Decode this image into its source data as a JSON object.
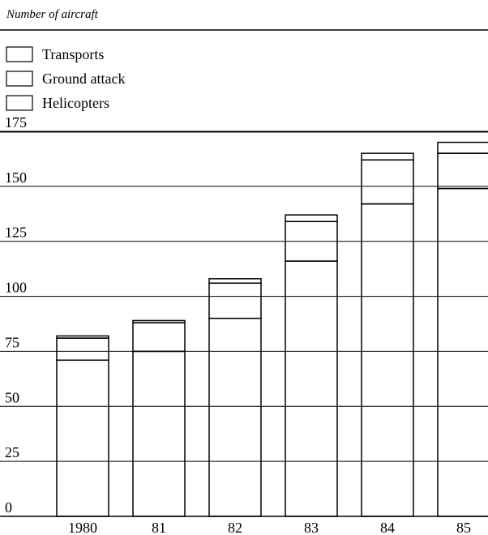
{
  "chart_data": {
    "type": "bar",
    "stacked": true,
    "title": "Number of aircraft",
    "categories": [
      "1980",
      "81",
      "82",
      "83",
      "84",
      "85"
    ],
    "series": [
      {
        "name": "Helicopters",
        "values": [
          71,
          75,
          90,
          116,
          142,
          149
        ]
      },
      {
        "name": "Ground attack",
        "values": [
          10,
          13,
          16,
          18,
          20,
          16
        ]
      },
      {
        "name": "Transports",
        "values": [
          1,
          1,
          2,
          3,
          3,
          5
        ]
      }
    ],
    "yticks": [
      "0",
      "25",
      "50",
      "75",
      "100",
      "125",
      "150",
      "175"
    ],
    "ylim": [
      0,
      175
    ],
    "grid": true,
    "legend_position": "top-left",
    "legend_order": [
      "Transports",
      "Ground attack",
      "Helicopters"
    ]
  }
}
